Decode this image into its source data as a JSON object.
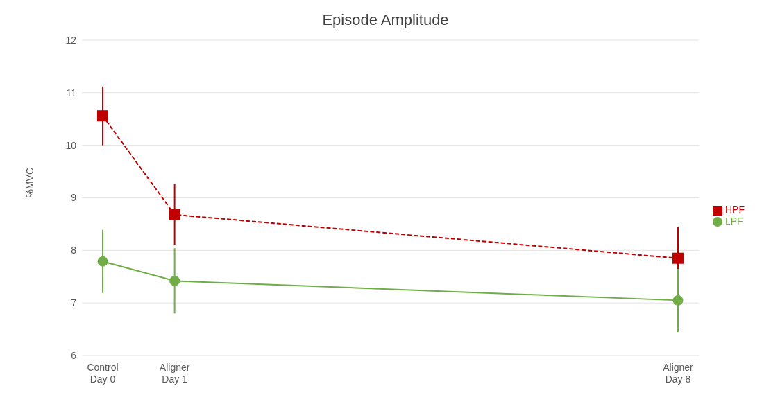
{
  "chart_data": {
    "type": "line",
    "title": "Episode Amplitude",
    "ylabel": "%MVC",
    "categories": [
      "Control Day 0",
      "Aligner Day 1",
      null,
      null,
      null,
      null,
      null,
      null,
      "Aligner Day 8"
    ],
    "ylim": [
      6,
      12
    ],
    "yticks": [
      6,
      7,
      8,
      9,
      10,
      11,
      12
    ],
    "series": [
      {
        "name": "HPF",
        "color": "#c00000",
        "values": [
          10.56,
          8.68,
          null,
          null,
          null,
          null,
          null,
          null,
          7.85
        ],
        "errors": [
          0.56,
          0.58,
          null,
          null,
          null,
          null,
          null,
          null,
          0.6
        ],
        "marker": "square",
        "line_style": "dashed"
      },
      {
        "name": "LPF",
        "color": "#70ad47",
        "values": [
          7.79,
          7.42,
          null,
          null,
          null,
          null,
          null,
          null,
          7.05
        ],
        "errors": [
          0.6,
          0.62,
          null,
          null,
          null,
          null,
          null,
          null,
          0.6
        ],
        "marker": "circle",
        "line_style": "solid"
      }
    ],
    "grid": "y",
    "legend": "right"
  }
}
